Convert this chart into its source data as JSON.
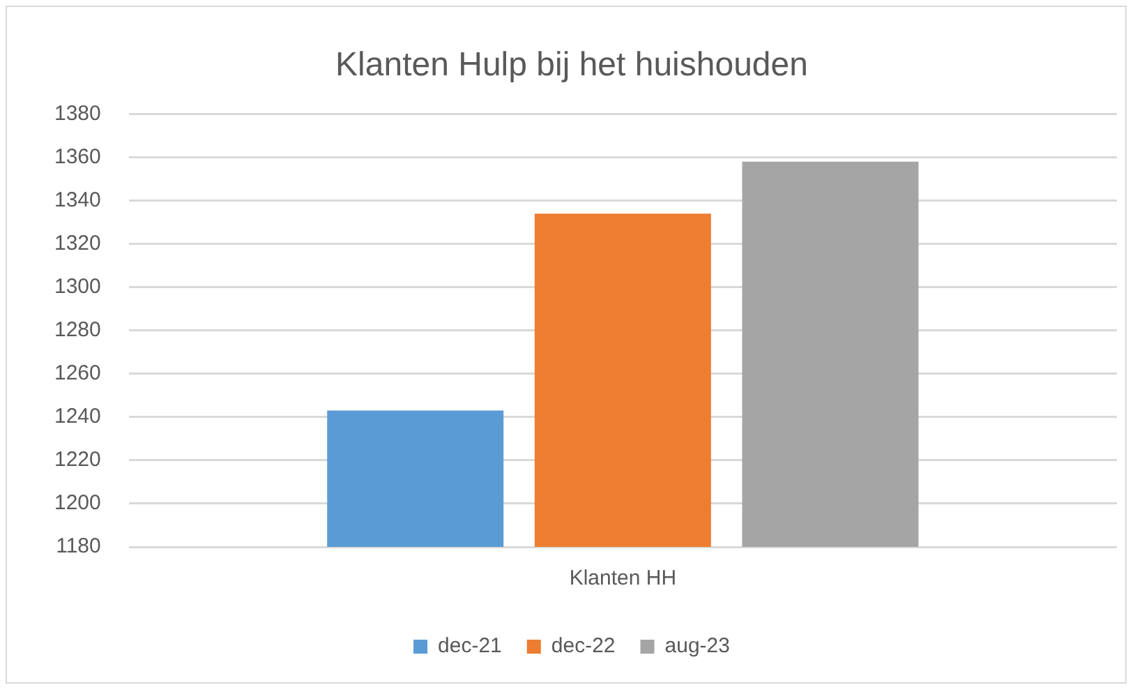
{
  "chart_data": {
    "type": "bar",
    "title": "Klanten Hulp bij het huishouden",
    "categories": [
      "Klanten HH"
    ],
    "series": [
      {
        "name": "dec-21",
        "color": "#5b9bd5",
        "values": [
          1243
        ]
      },
      {
        "name": "dec-22",
        "color": "#ed7d31",
        "values": [
          1334
        ]
      },
      {
        "name": "aug-23",
        "color": "#a5a5a5",
        "values": [
          1358
        ]
      }
    ],
    "ylim": [
      1180,
      1380
    ],
    "yticks": [
      1180,
      1200,
      1220,
      1240,
      1260,
      1280,
      1300,
      1320,
      1340,
      1360,
      1380
    ],
    "grid": "y",
    "legend": "bottom"
  }
}
